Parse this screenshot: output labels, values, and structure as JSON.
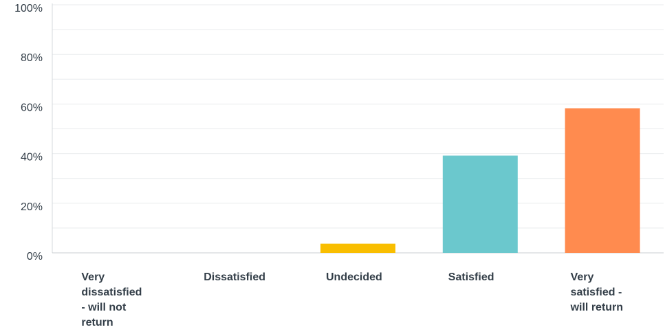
{
  "chart_data": {
    "type": "bar",
    "categories": [
      [
        "Very",
        "dissatisfied",
        "- will not",
        "return"
      ],
      [
        "Dissatisfied"
      ],
      [
        "Undecided"
      ],
      [
        "Satisfied"
      ],
      [
        "Very",
        "satisfied -",
        "will return"
      ]
    ],
    "values": [
      0,
      0,
      3.7,
      39.2,
      58.3
    ],
    "colors": [
      "#00bf6f",
      "#6bc8cd",
      "#f9be00",
      "#6bc8cd",
      "#ff8b4f"
    ],
    "ylim": [
      0,
      100
    ],
    "yticks": [
      0,
      20,
      40,
      60,
      80,
      100
    ],
    "ytick_labels": [
      "0%",
      "20%",
      "40%",
      "60%",
      "80%",
      "100%"
    ],
    "grid": true,
    "title": "",
    "xlabel": "",
    "ylabel": ""
  }
}
